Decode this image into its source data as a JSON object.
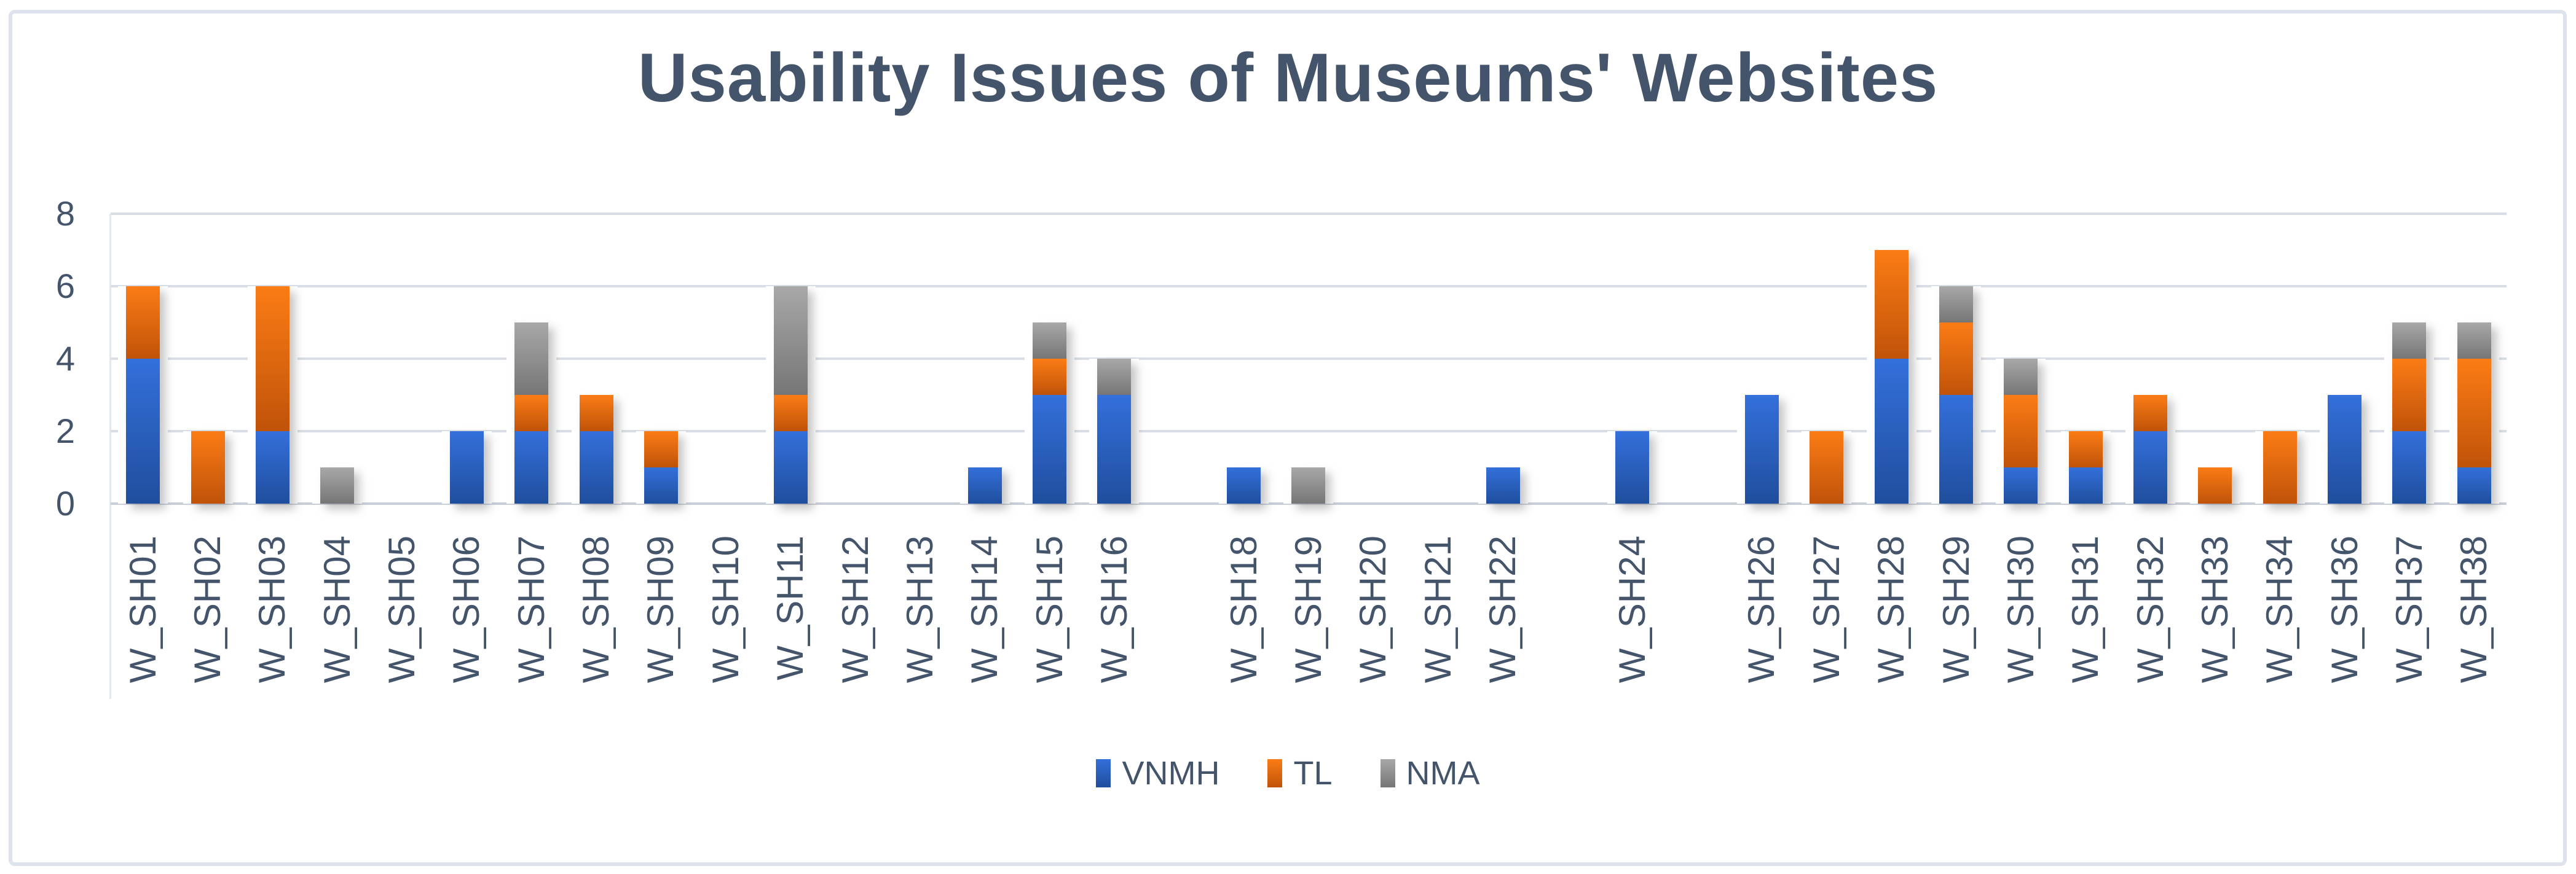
{
  "title": "Usability Issues of Museums' Websites",
  "colors": {
    "text": "#44546a",
    "gridline": "#d9dee6",
    "axis_line": "#c9cfd9",
    "frame_border": "#dee2ec",
    "vnmh_top": "#3470db",
    "vnmh_bottom": "#1f4e9d",
    "tl_top": "#fb7c15",
    "tl_bottom": "#c05309",
    "nma_top": "#a8a8a8",
    "nma_bottom": "#767676"
  },
  "y_axis": {
    "ticks": [
      8,
      6,
      4,
      2,
      0
    ],
    "max": 8
  },
  "legend": {
    "position": "bottom",
    "entries": [
      "VNMH",
      "TL",
      "NMA"
    ]
  },
  "chart_data": {
    "type": "bar",
    "stacked": true,
    "title": "Usability Issues of Museums' Websites",
    "xlabel": "",
    "ylabel": "",
    "ylim": [
      0,
      8
    ],
    "grid": true,
    "legend_position": "bottom",
    "categories": [
      "W_SH01",
      "W_SH02",
      "W_SH03",
      "W_SH04",
      "W_SH05",
      "W_SH06",
      "W_SH07",
      "W_SH08",
      "W_SH09",
      "W_SH10",
      "W_SH11",
      "W_SH12",
      "W_SH13",
      "W_SH14",
      "W_SH15",
      "W_SH16",
      "",
      "W_SH18",
      "W_SH19",
      "W_SH20",
      "W_SH21",
      "W_SH22",
      "",
      "W_SH24",
      "",
      "W_SH26",
      "W_SH27",
      "W_SH28",
      "W_SH29",
      "W_SH30",
      "W_SH31",
      "W_SH32",
      "W_SH33",
      "W_SH34",
      "W_SH36",
      "W_SH37",
      "W_SH38"
    ],
    "series": [
      {
        "name": "VNMH",
        "values": [
          4,
          0,
          2,
          0,
          0,
          2,
          2,
          2,
          1,
          0,
          2,
          0,
          0,
          1,
          3,
          3,
          0,
          1,
          0,
          0,
          0,
          1,
          0,
          2,
          0,
          3,
          0,
          4,
          3,
          1,
          1,
          2,
          0,
          0,
          3,
          2,
          1
        ]
      },
      {
        "name": "TL",
        "values": [
          2,
          2,
          4,
          0,
          0,
          0,
          1,
          1,
          1,
          0,
          1,
          0,
          0,
          0,
          1,
          0,
          0,
          0,
          0,
          0,
          0,
          0,
          0,
          0,
          0,
          0,
          2,
          3,
          2,
          2,
          1,
          1,
          1,
          2,
          0,
          2,
          3
        ]
      },
      {
        "name": "NMA",
        "values": [
          0,
          0,
          0,
          1,
          0,
          0,
          2,
          0,
          0,
          0,
          3,
          0,
          0,
          0,
          1,
          1,
          0,
          0,
          1,
          0,
          0,
          0,
          0,
          0,
          0,
          0,
          0,
          0,
          1,
          1,
          0,
          0,
          0,
          0,
          0,
          1,
          1
        ]
      }
    ]
  }
}
